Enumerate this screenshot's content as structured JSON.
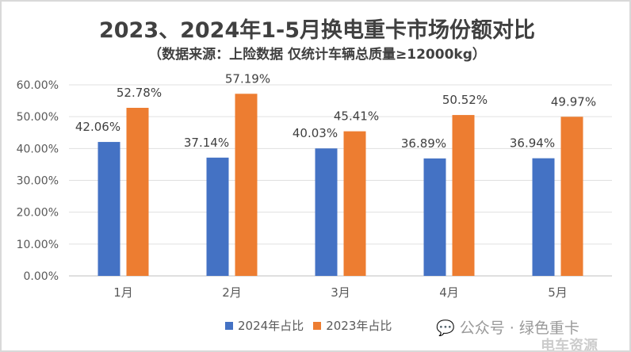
{
  "chart_data": {
    "type": "bar",
    "title": "2023、2024年1-5月换电重卡市场份额对比",
    "subtitle": "（数据来源：上险数据 仅统计车辆总质量≥12000kg）",
    "categories": [
      "1月",
      "2月",
      "3月",
      "4月",
      "5月"
    ],
    "series": [
      {
        "name": "2024年占比",
        "color": "#4472C4",
        "values": [
          42.06,
          37.14,
          40.03,
          36.89,
          36.94
        ],
        "labels": [
          "42.06%",
          "37.14%",
          "40.03%",
          "36.89%",
          "36.94%"
        ]
      },
      {
        "name": "2023年占比",
        "color": "#ED7D31",
        "values": [
          52.78,
          57.19,
          45.41,
          50.52,
          49.97
        ],
        "labels": [
          "52.78%",
          "57.19%",
          "45.41%",
          "50.52%",
          "49.97%"
        ]
      }
    ],
    "yticks": [
      "0.00%",
      "10.00%",
      "20.00%",
      "30.00%",
      "40.00%",
      "50.00%",
      "60.00%"
    ],
    "ylim": [
      0,
      60
    ],
    "grid": true,
    "legend": "bottom"
  },
  "watermark": {
    "text": "公众号 · 绿色重卡",
    "icon": "wechat-icon",
    "text2": "电车资源"
  }
}
